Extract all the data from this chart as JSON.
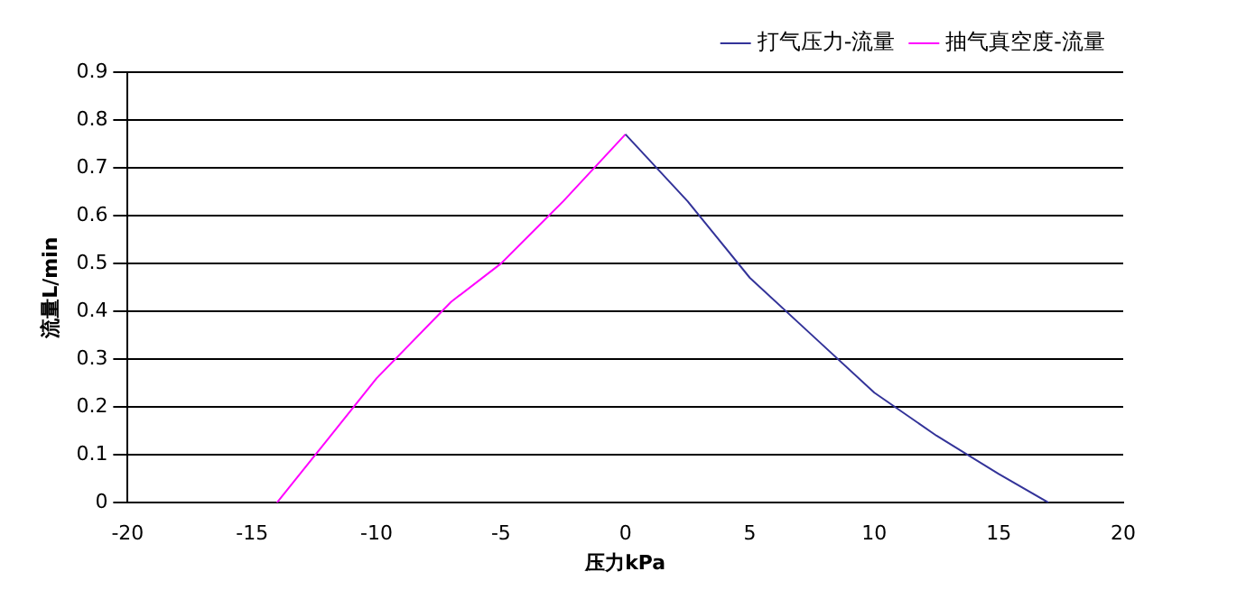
{
  "chart_data": {
    "type": "line",
    "xlabel": "压力kPa",
    "ylabel": "流量L/min",
    "series": [
      {
        "name": "打气压力-流量",
        "color": "#333399",
        "x": [
          0,
          2.5,
          5,
          7.5,
          10,
          12.5,
          15,
          17
        ],
        "values": [
          0.77,
          0.63,
          0.47,
          0.35,
          0.23,
          0.14,
          0.06,
          0
        ]
      },
      {
        "name": "抽气真空度-流量",
        "color": "#ff00ff",
        "x": [
          -14,
          -12,
          -10,
          -7,
          -5,
          -2.5,
          0
        ],
        "values": [
          0,
          0.13,
          0.26,
          0.42,
          0.5,
          0.63,
          0.77
        ]
      }
    ],
    "xlim": [
      -20,
      20
    ],
    "xticks": [
      -20,
      -15,
      -10,
      -5,
      0,
      5,
      10,
      15,
      20
    ],
    "ylim": [
      0,
      0.9
    ],
    "yticks": [
      0,
      0.1,
      0.2,
      0.3,
      0.4,
      0.5,
      0.6,
      0.7,
      0.8,
      0.9
    ],
    "grid": "y",
    "legend": "top right",
    "marker": "none",
    "line_style": "solid"
  }
}
